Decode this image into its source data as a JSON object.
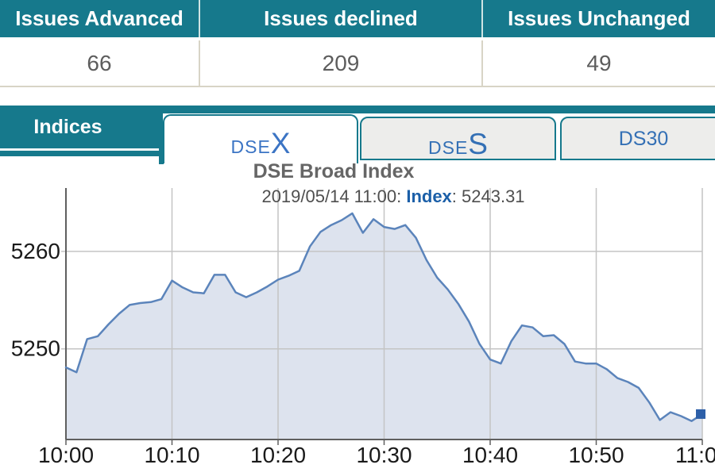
{
  "issues_table": {
    "headers": [
      "Issues Advanced",
      "Issues declined",
      "Issues Unchanged"
    ],
    "values": [
      "66",
      "209",
      "49"
    ]
  },
  "tabs": {
    "section_label": "Indices",
    "items": [
      {
        "id": "dsex",
        "small": "DSE",
        "big": "X",
        "plain": "",
        "active": true
      },
      {
        "id": "dses",
        "small": "DSE",
        "big": "S",
        "plain": "",
        "active": false
      },
      {
        "id": "ds30",
        "small": "",
        "big": "",
        "plain": "DS30",
        "active": false
      }
    ]
  },
  "chart": {
    "title": "DSE Broad Index",
    "subtitle_prefix": "2019/05/14 11:00: ",
    "subtitle_label": "Index",
    "subtitle_value": ": 5243.31"
  },
  "chart_data": {
    "type": "area",
    "title": "DSE Broad Index",
    "annotation": "2019/05/14 11:00: Index: 5243.31",
    "series_name": "Index",
    "x_unit": "minutes after 10:00",
    "xlim": [
      0,
      60
    ],
    "ylim": [
      5240.7,
      5266.5
    ],
    "grid": true,
    "x_ticks": [
      {
        "minute": 0,
        "label": "10:00"
      },
      {
        "minute": 10,
        "label": "10:10"
      },
      {
        "minute": 20,
        "label": "10:20"
      },
      {
        "minute": 30,
        "label": "10:30"
      },
      {
        "minute": 40,
        "label": "10:40"
      },
      {
        "minute": 50,
        "label": "10:50"
      },
      {
        "minute": 60,
        "label": "11:00"
      }
    ],
    "y_ticks": [
      {
        "value": 5250,
        "label": "5250"
      },
      {
        "value": 5260,
        "label": "5260"
      }
    ],
    "x_minutes": [
      0,
      1,
      2,
      3,
      4,
      5,
      6,
      7,
      8,
      9,
      10,
      11,
      12,
      13,
      14,
      15,
      16,
      17,
      18,
      19,
      20,
      21,
      22,
      23,
      24,
      25,
      26,
      27,
      28,
      29,
      30,
      31,
      32,
      33,
      34,
      35,
      36,
      37,
      38,
      39,
      40,
      41,
      42,
      43,
      44,
      45,
      46,
      47,
      48,
      49,
      50,
      51,
      52,
      53,
      54,
      55,
      56,
      57,
      58,
      59,
      60
    ],
    "values": [
      5248.1,
      5247.6,
      5251.0,
      5251.3,
      5252.5,
      5253.6,
      5254.5,
      5254.7,
      5254.8,
      5255.1,
      5257.0,
      5256.3,
      5255.8,
      5255.7,
      5257.6,
      5257.6,
      5255.8,
      5255.3,
      5255.8,
      5256.4,
      5257.1,
      5257.5,
      5258.0,
      5260.5,
      5262.0,
      5262.7,
      5263.2,
      5263.9,
      5261.9,
      5263.3,
      5262.5,
      5262.3,
      5262.7,
      5261.4,
      5259.1,
      5257.3,
      5256.1,
      5254.6,
      5252.8,
      5250.5,
      5248.9,
      5248.5,
      5250.8,
      5252.4,
      5252.2,
      5251.3,
      5251.4,
      5250.5,
      5248.7,
      5248.5,
      5248.5,
      5247.9,
      5247.0,
      5246.6,
      5246.0,
      5244.5,
      5242.7,
      5243.5,
      5243.1,
      5242.6,
      5243.31
    ],
    "last_value": 5243.31,
    "last_point_marker": "square"
  },
  "colors": {
    "teal": "#16798c",
    "header_text": "#ffffff",
    "value_text": "#5d5d5d",
    "table_border": "#d8d4c6",
    "header_divider": "#cfe4e4",
    "tab_active_text": "#3b74c4",
    "tab_inactive_text": "#3470b5",
    "tab_inactive_bg": "#ededeb",
    "title_text": "#666666",
    "subtitle_text": "#4f4f4f",
    "index_label_blue": "#1b5fa8",
    "line": "#5b84bb",
    "area_fill": "#dde3ee",
    "marker": "#2d5fa8",
    "gridline": "#c4c4c4",
    "axis": "#5f5f5f",
    "axis_label": "#1a1a1a"
  }
}
